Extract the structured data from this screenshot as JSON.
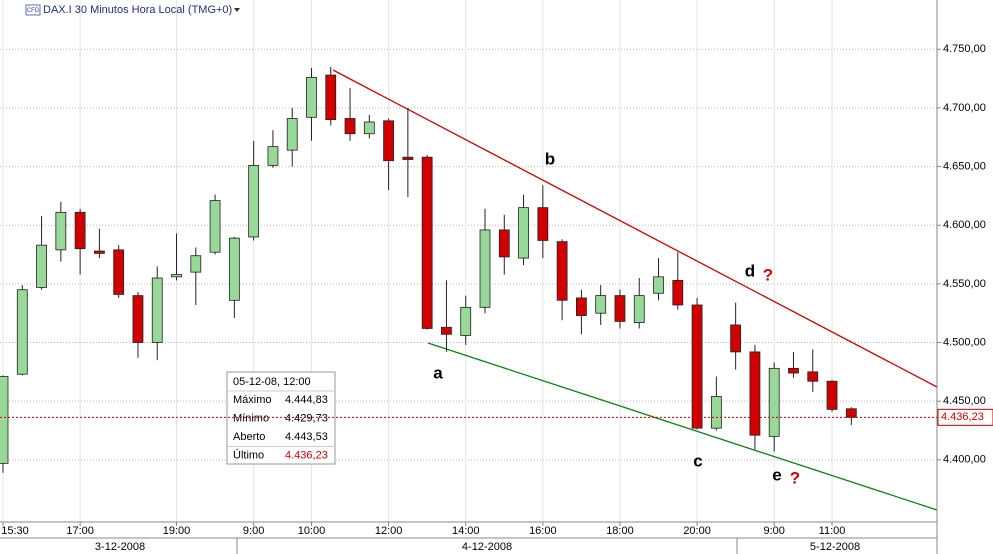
{
  "chart_data": {
    "type": "candlestick",
    "title": "DAX.I 30 Minutos Hora Local (TMG+0)",
    "badge": "CFD",
    "categories": [
      "15:30",
      null,
      null,
      null,
      "17:00",
      null,
      null,
      null,
      null,
      "19:00",
      null,
      null,
      null,
      "9:00",
      null,
      null,
      "10:00",
      null,
      null,
      null,
      "12:00",
      null,
      null,
      null,
      "14:00",
      null,
      null,
      null,
      "16:00",
      null,
      null,
      null,
      "18:00",
      null,
      null,
      null,
      "20:00",
      null,
      null,
      null,
      "9:00",
      null,
      null,
      "11:00",
      null
    ],
    "dates": [
      "3-12-2008",
      "4-12-2008",
      "5-12-2008"
    ],
    "open": [
      4397,
      4473,
      4547,
      4579,
      4611,
      4578,
      4579,
      4540,
      4500,
      4556,
      4560,
      4577,
      4536,
      4590,
      4651,
      4664,
      4692,
      4728,
      4691,
      4678,
      4689,
      4658,
      4658,
      4513,
      4506,
      4530,
      4596,
      4572,
      4615,
      4586,
      4538,
      4525,
      4540,
      4517,
      4542,
      4553,
      4532,
      4427,
      4515,
      4492,
      4420,
      4478,
      4475,
      4467,
      4443.53
    ],
    "high": [
      4472,
      4549,
      4608,
      4620,
      4614,
      4597,
      4583,
      4543,
      4565,
      4593,
      4581,
      4626,
      4590,
      4672,
      4681,
      4700,
      4734,
      4735,
      4717,
      4694,
      4691,
      4700,
      4660,
      4553,
      4540,
      4614,
      4609,
      4626,
      4634,
      4588,
      4545,
      4549,
      4545,
      4555,
      4572,
      4577,
      4538,
      4471,
      4534,
      4498,
      4483,
      4492,
      4494,
      4468,
      4444.83
    ],
    "low": [
      4389,
      4472,
      4545,
      4569,
      4558,
      4572,
      4538,
      4487,
      4485,
      4553,
      4532,
      4575,
      4521,
      4587,
      4649,
      4650,
      4672,
      4685,
      4672,
      4674,
      4630,
      4624,
      4511,
      4492,
      4498,
      4525,
      4558,
      4566,
      4572,
      4519,
      4507,
      4515,
      4512,
      4512,
      4536,
      4528,
      4426,
      4425,
      4477,
      4409,
      4407,
      4470,
      4458,
      4441,
      4429.73
    ],
    "close": [
      4471,
      4545,
      4583,
      4611,
      4580,
      4576,
      4541,
      4500,
      4555,
      4558,
      4574,
      4621,
      4589,
      4651,
      4667,
      4691,
      4726,
      4690,
      4678,
      4688,
      4655,
      4656,
      4512,
      4507,
      4530,
      4596,
      4573,
      4615,
      4587,
      4536,
      4523,
      4540,
      4518,
      4540,
      4556,
      4532,
      4427,
      4454,
      4492,
      4421,
      4478,
      4474,
      4467,
      4443,
      4436.23
    ],
    "up_color": "#98d898",
    "down_color": "#d00000",
    "ylim": [
      4347,
      4792
    ],
    "yticks": [
      {
        "value": 4400,
        "label": "4.400,00"
      },
      {
        "value": 4450,
        "label": "4.450,00"
      },
      {
        "value": 4500,
        "label": "4.500,00"
      },
      {
        "value": 4550,
        "label": "4.550,00"
      },
      {
        "value": 4600,
        "label": "4.600,00"
      },
      {
        "value": 4650,
        "label": "4.650,00"
      },
      {
        "value": 4700,
        "label": "4.700,00"
      },
      {
        "value": 4750,
        "label": "4.750,00"
      }
    ],
    "grid": true,
    "price_line": {
      "value": 4436.23,
      "label": "4.436,23"
    },
    "annotations": [
      "a",
      "b",
      "c",
      "d",
      "?",
      "e",
      "?"
    ],
    "tooltip": {
      "title": "05-12-08, 12:00",
      "rows": [
        [
          "Máximo",
          "4.444,83"
        ],
        [
          "Mínimo",
          "4.429,73"
        ],
        [
          "Aberto",
          "4.443,53"
        ],
        [
          "Último",
          "4.436,23"
        ]
      ]
    }
  }
}
